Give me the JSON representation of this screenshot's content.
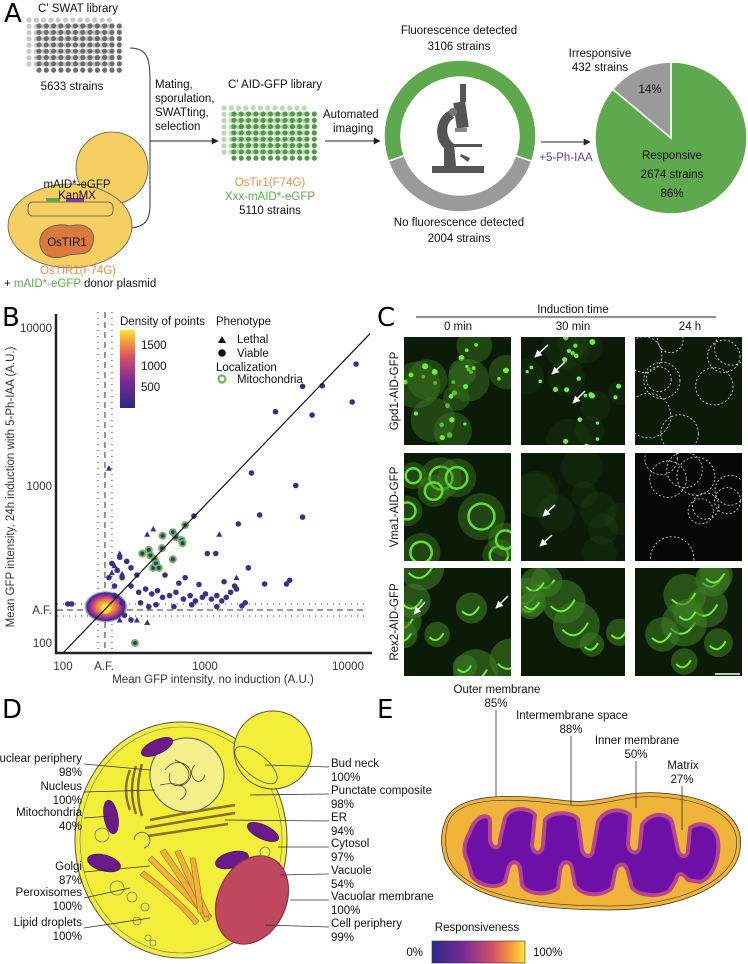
{
  "panel_labels": {
    "a": "A",
    "b": "B",
    "c": "C",
    "d": "D",
    "e": "E"
  },
  "colors": {
    "green": "#5ea84e",
    "gray": "#9a9a9b",
    "orange": "#e8904f",
    "purple": "#6a3d9a",
    "yeast": "#f5cf62",
    "cell_yellow": "#f3ee3a",
    "mito_purple": "#6b1a8a"
  },
  "panel_a": {
    "swat_title": "C' SWAT library",
    "swat_count": "5633 strains",
    "process_lines": [
      "Mating,",
      "sporulation,",
      "SWATting,",
      "selection"
    ],
    "aid_title": "C' AID-GFP library",
    "aid_genotype_1": "OsTir1(F74G)",
    "aid_genotype_2": "Xxx-mAID*-eGFP",
    "aid_count": "5110 strains",
    "imaging_lines": [
      "Automated",
      "imaging"
    ],
    "yeast_plasmid_1": "mAID*-eGFP",
    "yeast_plasmid_2": "KanMX",
    "yeast_protein": "OsTIR1",
    "donor_line_1": "OsTIR1(F74G)",
    "donor_prefix": "+ ",
    "donor_green": "mAID*-eGFP",
    "donor_suffix": " donor plasmid",
    "fluor_label": "Fluorescence detected",
    "fluor_count": "3106 strains",
    "nofluor_label": "No fluorescence detected",
    "nofluor_count": "2004 strains",
    "treatment": "+5-Ph-IAA",
    "microscope_icon": "microscope-icon"
  },
  "chart_data": [
    {
      "type": "pie",
      "slices": [
        {
          "label": "Fluorescence detected",
          "value": 3106,
          "color": "#5ea84e"
        },
        {
          "label": "No fluorescence detected",
          "value": 2004,
          "color": "#9a9a9b"
        }
      ],
      "style": "donut"
    },
    {
      "type": "pie",
      "slices": [
        {
          "label": "Responsive",
          "value": 2674,
          "percent": "86%",
          "count": "2674 strains",
          "color": "#5ea84e"
        },
        {
          "label": "Irresponsive",
          "value": 432,
          "percent": "14%",
          "count": "432 strains",
          "color": "#9a9a9b"
        }
      ]
    },
    {
      "type": "scatter",
      "xlabel": "Mean GFP intensity, no induction (A.U.)",
      "ylabel": "Mean GFP intensity, 24h induction with 5-Ph-IAA (A.U.)",
      "xscale": "log",
      "yscale": "log",
      "xlim": [
        90,
        14000
      ],
      "ylim": [
        90,
        12000
      ],
      "xticks": [
        "100",
        "A.F.",
        "1000",
        "10000"
      ],
      "yticks": [
        "10000",
        "1000",
        "A.F.",
        "100"
      ],
      "autofluorescence": {
        "x": 197,
        "y": 162
      },
      "diagonal": "y = x",
      "legend": {
        "density_title": "Density of points",
        "density_ticks": [
          "1500",
          "1000",
          "500"
        ],
        "phenotype_title": "Phenotype",
        "lethal": "Lethal",
        "viable": "Viable",
        "localization_title": "Localization",
        "mitochondria": "Mitochondria"
      },
      "legend_placement": "top",
      "density_peak": {
        "x": 200,
        "y": 165
      },
      "viable_points": [
        [
          11400,
          5900
        ],
        [
          4800,
          4260
        ],
        [
          6600,
          4300
        ],
        [
          10700,
          3390
        ],
        [
          3100,
          2940
        ],
        [
          5600,
          2800
        ],
        [
          2100,
          1200
        ],
        [
          4300,
          1000
        ],
        [
          2400,
          650
        ],
        [
          4800,
          630
        ],
        [
          1700,
          570
        ],
        [
          830,
          640
        ],
        [
          1030,
          370
        ],
        [
          1180,
          370
        ],
        [
          2000,
          300
        ],
        [
          2600,
          237
        ],
        [
          3700,
          237
        ],
        [
          3900,
          250
        ],
        [
          1900,
          180
        ],
        [
          108,
          177
        ],
        [
          115,
          177
        ],
        [
          260,
          260
        ],
        [
          300,
          230
        ],
        [
          340,
          210
        ],
        [
          380,
          220
        ],
        [
          420,
          205
        ],
        [
          460,
          215
        ],
        [
          500,
          195
        ],
        [
          560,
          200
        ],
        [
          620,
          210
        ],
        [
          700,
          190
        ],
        [
          780,
          200
        ],
        [
          850,
          185
        ],
        [
          950,
          195
        ],
        [
          1000,
          205
        ],
        [
          1100,
          190
        ],
        [
          1200,
          200
        ],
        [
          1300,
          185
        ],
        [
          1400,
          195
        ],
        [
          1500,
          210
        ],
        [
          650,
          240
        ],
        [
          720,
          260
        ],
        [
          900,
          235
        ],
        [
          520,
          270
        ],
        [
          1350,
          245
        ],
        [
          1600,
          230
        ],
        [
          1650,
          220
        ],
        [
          300,
          300
        ],
        [
          280,
          330
        ],
        [
          330,
          270
        ],
        [
          240,
          290
        ],
        [
          220,
          320
        ],
        [
          250,
          350
        ],
        [
          210,
          260
        ],
        [
          230,
          230
        ],
        [
          350,
          180
        ],
        [
          400,
          170
        ],
        [
          450,
          175
        ],
        [
          600,
          170
        ],
        [
          800,
          175
        ],
        [
          1200,
          170
        ],
        [
          1800,
          172
        ],
        [
          260,
          180
        ],
        [
          230,
          200
        ],
        [
          270,
          150
        ],
        [
          300,
          140
        ]
      ],
      "lethal_points": [
        [
          210,
          1290
        ],
        [
          250,
          370
        ],
        [
          390,
          490
        ],
        [
          430,
          530
        ],
        [
          1250,
          490
        ],
        [
          1650,
          260
        ],
        [
          230,
          310
        ],
        [
          240,
          290
        ],
        [
          260,
          275
        ],
        [
          220,
          280
        ],
        [
          250,
          140
        ],
        [
          330,
          140
        ],
        [
          390,
          135
        ]
      ],
      "mitochondria_points": [
        [
          500,
          480
        ],
        [
          590,
          505
        ],
        [
          680,
          450
        ],
        [
          720,
          560
        ],
        [
          495,
          400
        ],
        [
          590,
          340
        ],
        [
          360,
          370
        ],
        [
          410,
          360
        ],
        [
          440,
          340
        ],
        [
          430,
          300
        ],
        [
          690,
          430
        ],
        [
          620,
          470
        ],
        [
          450,
          320
        ],
        [
          470,
          300
        ],
        [
          400,
          390
        ],
        [
          320,
          100
        ]
      ]
    }
  ],
  "panel_c": {
    "header": "Induction time",
    "columns": [
      "0 min",
      "30 min",
      "24 h"
    ],
    "rows": [
      "Gpd1-AID-GFP",
      "Vma1-AID-GFP",
      "Rex2-AID-GFP"
    ]
  },
  "panel_d": {
    "left_labels": [
      {
        "name": "Nuclear periphery",
        "pct": "98%"
      },
      {
        "name": "Nucleus",
        "pct": "100%"
      },
      {
        "name": "Mitochondria",
        "pct": "40%"
      },
      {
        "name": "Golgi",
        "pct": "87%"
      },
      {
        "name": "Peroxisomes",
        "pct": "100%"
      },
      {
        "name": "Lipid droplets",
        "pct": "100%"
      }
    ],
    "right_labels": [
      {
        "name": "Bud neck",
        "pct": "100%"
      },
      {
        "name": "Punctate composite",
        "pct": "98%"
      },
      {
        "name": "ER",
        "pct": "94%"
      },
      {
        "name": "Cytosol",
        "pct": "97%"
      },
      {
        "name": "Vacuole",
        "pct": "54%"
      },
      {
        "name": "Vacuolar membrane",
        "pct": "100%"
      },
      {
        "name": "Cell periphery",
        "pct": "99%"
      }
    ]
  },
  "panel_e": {
    "labels": [
      {
        "name": "Outer membrane",
        "pct": "85%"
      },
      {
        "name": "Intermembrane space",
        "pct": "88%"
      },
      {
        "name": "Inner membrane",
        "pct": "50%"
      },
      {
        "name": "Matrix",
        "pct": "27%"
      }
    ],
    "colorbar_title": "Responsiveness",
    "colorbar_min": "0%",
    "colorbar_max": "100%"
  }
}
